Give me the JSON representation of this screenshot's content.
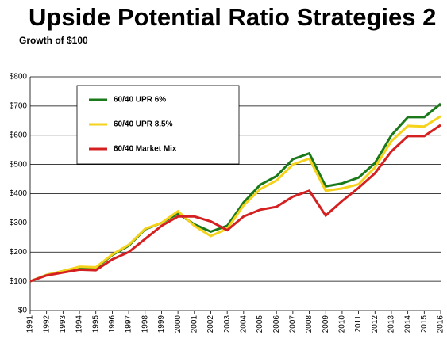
{
  "chart_data": {
    "type": "line",
    "title": "Upside Potential Ratio Strategies 2",
    "subtitle": "Growth of $100",
    "categories": [
      "1991",
      "1992",
      "1993",
      "1994",
      "1995",
      "1996",
      "1997",
      "1998",
      "1999",
      "2000",
      "2001",
      "2002",
      "2003",
      "2004",
      "2005",
      "2006",
      "2007",
      "2008",
      "2009",
      "2010",
      "2011",
      "2012",
      "2013",
      "2014",
      "2015",
      "2016"
    ],
    "series": [
      {
        "name": "60/40 UPR 6%",
        "color": "#1a7a1a",
        "values": [
          100,
          122,
          135,
          148,
          145,
          190,
          222,
          278,
          300,
          332,
          295,
          270,
          290,
          370,
          430,
          460,
          518,
          538,
          425,
          435,
          455,
          505,
          600,
          662,
          662,
          708
        ]
      },
      {
        "name": "60/40 UPR 8.5%",
        "color": "#f5d21c",
        "values": [
          100,
          122,
          135,
          150,
          148,
          192,
          225,
          280,
          300,
          340,
          290,
          255,
          280,
          360,
          415,
          445,
          500,
          520,
          410,
          418,
          432,
          490,
          580,
          632,
          630,
          665
        ]
      },
      {
        "name": "60/40 Market Mix",
        "color": "#d42020",
        "values": [
          100,
          120,
          130,
          140,
          138,
          175,
          200,
          245,
          290,
          322,
          322,
          305,
          275,
          322,
          345,
          355,
          390,
          410,
          325,
          375,
          420,
          470,
          545,
          597,
          597,
          635
        ]
      }
    ],
    "ylim": [
      0,
      800
    ],
    "yticks": [
      {
        "value": 0,
        "label": "$0"
      },
      {
        "value": 100,
        "label": "$100"
      },
      {
        "value": 200,
        "label": "$200"
      },
      {
        "value": 300,
        "label": "$300"
      },
      {
        "value": 400,
        "label": "$400"
      },
      {
        "value": 500,
        "label": "$500"
      },
      {
        "value": 600,
        "label": "$600"
      },
      {
        "value": 700,
        "label": "$700"
      },
      {
        "value": 800,
        "label": "$800"
      }
    ],
    "grid": true
  }
}
